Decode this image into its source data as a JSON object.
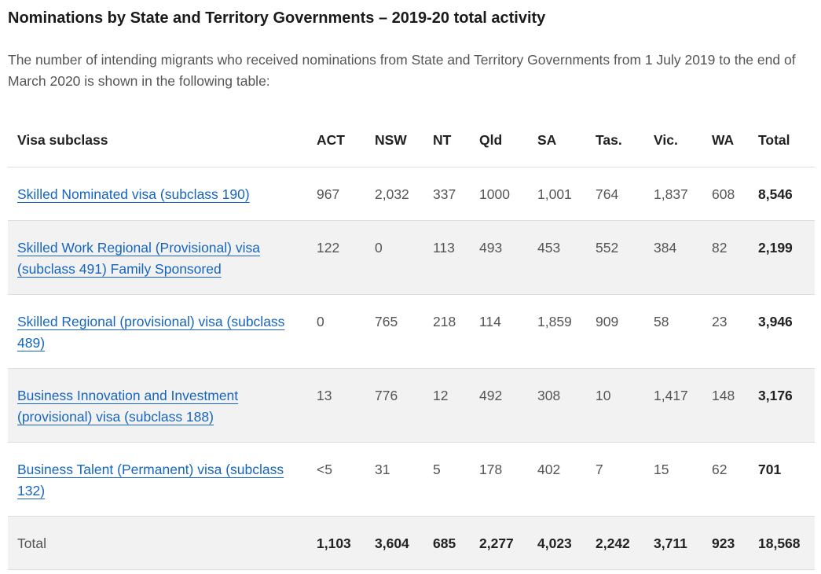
{
  "heading": "Nominations by State and Territory Governments – 2019-20 total activity",
  "intro": "The number of intending migrants who received nominations from State and Territory Governments from 1 July 2019 to the end of March 2020 is shown in the following table:",
  "table": {
    "headers": [
      "Visa subclass",
      "ACT",
      "NSW",
      "NT",
      "Qld",
      "SA",
      "Tas.",
      "Vic.",
      "WA",
      "Total"
    ],
    "rows": [
      {
        "visa": "Skilled Nominated visa (subclass 190)",
        "values": [
          "967",
          "2,032",
          "337",
          "1000",
          "1,001",
          "764",
          "1,837",
          "608"
        ],
        "total": "8,546"
      },
      {
        "visa": "Skilled Work Regional (Provisional) visa (subclass 491) Family Sponsored",
        "values": [
          "122",
          "0",
          "113",
          "493",
          "453",
          "552",
          "384",
          "82"
        ],
        "total": "2,199"
      },
      {
        "visa": "Skilled Regional (provisional) visa (subclass 489)",
        "values": [
          "0",
          "765",
          "218",
          "114",
          "1,859",
          "909",
          "58",
          "23"
        ],
        "total": "3,946"
      },
      {
        "visa": "Business Innovation and Investment (provisional) visa (subclass 188)",
        "values": [
          "13",
          "776",
          "12",
          "492",
          "308",
          "10",
          "1,417",
          "148"
        ],
        "total": "3,176"
      },
      {
        "visa": "Business Talent (Permanent) visa (subclass 132)",
        "values": [
          "<5",
          "31",
          "5",
          "178",
          "402",
          "7",
          "15",
          "62"
        ],
        "total": "701"
      }
    ],
    "footer": {
      "label": "Total",
      "values": [
        "1,103",
        "3,604",
        "685",
        "2,277",
        "4,023",
        "2,242",
        "3,711",
        "923"
      ],
      "total": "18,568"
    }
  }
}
